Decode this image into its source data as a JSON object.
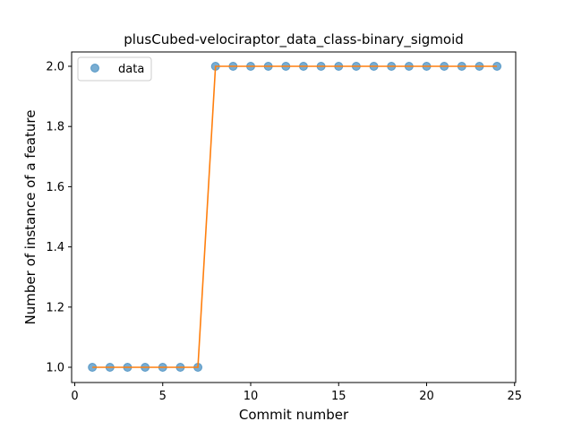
{
  "chart_data": {
    "type": "scatter",
    "title": "plusCubed-velociraptor_data_class-binary_sigmoid",
    "xlabel": "Commit number",
    "ylabel": "Number of instance of a feature",
    "xlim": [
      0,
      25
    ],
    "ylim": [
      1.0,
      2.0
    ],
    "xticks": [
      "0",
      "5",
      "10",
      "15",
      "20",
      "25"
    ],
    "yticks": [
      "1.0",
      "1.2",
      "1.4",
      "1.6",
      "1.8",
      "2.0"
    ],
    "grid": false,
    "legend": {
      "placement": "top-left",
      "entries": [
        "data"
      ]
    },
    "series": [
      {
        "name": "data",
        "style": "markers",
        "color": "#1f77b4",
        "x": [
          1,
          2,
          3,
          4,
          5,
          6,
          7,
          8,
          9,
          10,
          11,
          12,
          13,
          14,
          15,
          16,
          17,
          18,
          19,
          20,
          21,
          22,
          23,
          24
        ],
        "y": [
          1,
          1,
          1,
          1,
          1,
          1,
          1,
          2,
          2,
          2,
          2,
          2,
          2,
          2,
          2,
          2,
          2,
          2,
          2,
          2,
          2,
          2,
          2,
          2
        ]
      },
      {
        "style": "line",
        "color": "#ff7f0e",
        "x": [
          1,
          2,
          3,
          4,
          5,
          6,
          7,
          8,
          9,
          10,
          11,
          12,
          13,
          14,
          15,
          16,
          17,
          18,
          19,
          20,
          21,
          22,
          23,
          24
        ],
        "y": [
          1,
          1,
          1,
          1,
          1,
          1,
          1,
          2,
          2,
          2,
          2,
          2,
          2,
          2,
          2,
          2,
          2,
          2,
          2,
          2,
          2,
          2,
          2,
          2
        ]
      }
    ]
  }
}
